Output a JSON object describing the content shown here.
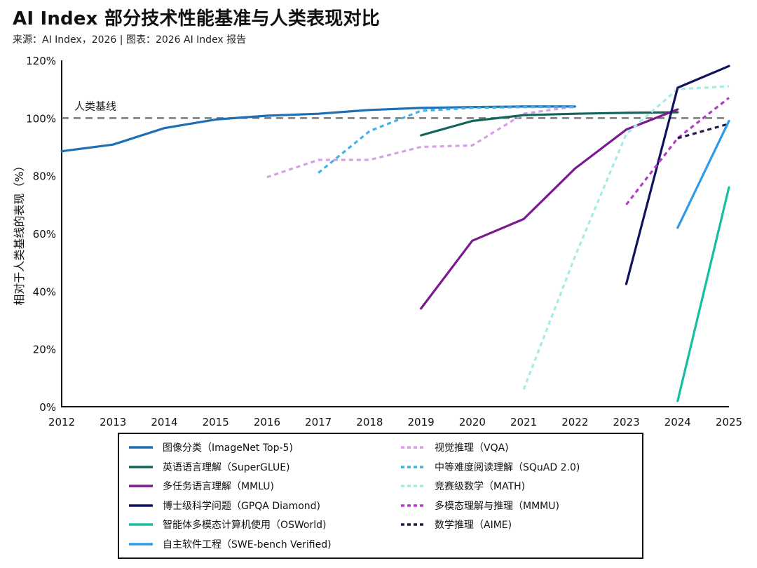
{
  "header": {
    "title": "AI Index 部分技术性能基准与人类表现对比",
    "subtitle": "来源：AI Index，2026 | 图表：2026 AI Index 报告"
  },
  "chart_data": {
    "type": "line",
    "ylabel": "相对于人类基线的表现（%）",
    "xlabel": "",
    "xlim": [
      2012,
      2025
    ],
    "ylim": [
      0,
      120
    ],
    "x_ticks": [
      "2012",
      "2013",
      "2014",
      "2015",
      "2016",
      "2017",
      "2018",
      "2019",
      "2020",
      "2021",
      "2022",
      "2023",
      "2024",
      "2025"
    ],
    "y_ticks": [
      "0%",
      "20%",
      "40%",
      "60%",
      "80%",
      "100%",
      "120%"
    ],
    "baseline": {
      "value": 100,
      "label": "人类基线"
    },
    "grid": false,
    "legend_position": "bottom",
    "series": [
      {
        "name": "图像分类（ImageNet Top-5)",
        "color": "#1f6fb4",
        "dash": false,
        "x": [
          2012,
          2013,
          2014,
          2015,
          2016,
          2017,
          2018,
          2019,
          2020,
          2021,
          2022
        ],
        "y": [
          88.5,
          90.8,
          96.5,
          99.5,
          100.8,
          101.5,
          102.8,
          103.5,
          103.8,
          104.0,
          104.0
        ]
      },
      {
        "name": "视觉推理（VQA)",
        "color": "#d99ee6",
        "dash": true,
        "x": [
          2016,
          2017,
          2018,
          2019,
          2020,
          2021,
          2022
        ],
        "y": [
          79.5,
          85.5,
          85.5,
          90.0,
          90.5,
          101.5,
          104.0
        ]
      },
      {
        "name": "英语语言理解（SuperGLUE)",
        "color": "#14645a",
        "dash": false,
        "x": [
          2019,
          2020,
          2021,
          2022,
          2023,
          2024
        ],
        "y": [
          94.0,
          99.0,
          101.0,
          101.5,
          101.8,
          102.0
        ]
      },
      {
        "name": "中等难度阅读理解（SQuAD 2.0)",
        "color": "#3fb3e8",
        "dash": true,
        "x": [
          2017,
          2018,
          2019,
          2020,
          2021,
          2022
        ],
        "y": [
          81.0,
          95.5,
          102.5,
          103.5,
          103.8,
          103.8
        ]
      },
      {
        "name": "多任务语言理解（MMLU)",
        "color": "#7b1a8e",
        "dash": false,
        "x": [
          2019,
          2020,
          2021,
          2022,
          2023,
          2024
        ],
        "y": [
          34.0,
          57.5,
          65.0,
          82.5,
          96.0,
          103.0
        ]
      },
      {
        "name": "竞赛级数学（MATH)",
        "color": "#a6ebe6",
        "dash": true,
        "x": [
          2021,
          2022,
          2023,
          2024,
          2025
        ],
        "y": [
          6.0,
          52.0,
          94.5,
          110.0,
          111.0
        ]
      },
      {
        "name": "博士级科学问题（GPQA Diamond)",
        "color": "#11135e",
        "dash": false,
        "x": [
          2023,
          2024,
          2025
        ],
        "y": [
          42.5,
          110.5,
          118.0
        ]
      },
      {
        "name": "多模态理解与推理（MMMU)",
        "color": "#b03fc4",
        "dash": true,
        "x": [
          2023,
          2024,
          2025
        ],
        "y": [
          70.0,
          93.0,
          107.0
        ]
      },
      {
        "name": "智能体多模态计算机使用（OSWorld)",
        "color": "#14bfa3",
        "dash": false,
        "x": [
          2024,
          2025
        ],
        "y": [
          2.0,
          76.0
        ]
      },
      {
        "name": "数学推理（AIME)",
        "color": "#2a1547",
        "dash": true,
        "x": [
          2024,
          2025
        ],
        "y": [
          93.0,
          98.0
        ]
      },
      {
        "name": "自主软件工程（SWE-bench Verified)",
        "color": "#2e9be8",
        "dash": false,
        "x": [
          2024,
          2025
        ],
        "y": [
          62.0,
          99.0
        ]
      }
    ]
  }
}
